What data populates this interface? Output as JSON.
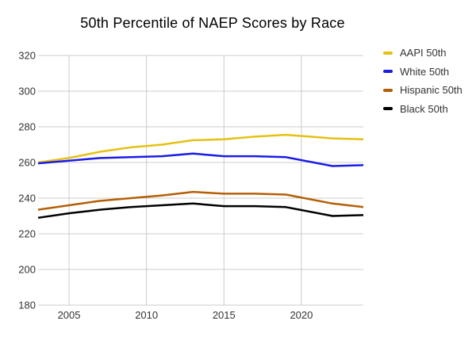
{
  "title": "50th Percentile of NAEP Scores by Race",
  "chart_data": {
    "type": "line",
    "x": [
      2003,
      2005,
      2007,
      2009,
      2011,
      2013,
      2015,
      2017,
      2019,
      2022,
      2024
    ],
    "series": [
      {
        "name": "AAPI 50th",
        "color": "#e5c114",
        "values": [
          260,
          262.5,
          266,
          268.5,
          270,
          272.5,
          273,
          274.5,
          275.5,
          273.5,
          273
        ]
      },
      {
        "name": "White 50th",
        "color": "#1b1be6",
        "values": [
          259.5,
          261,
          262.5,
          263,
          263.5,
          265,
          263.5,
          263.5,
          263,
          258,
          258.5
        ]
      },
      {
        "name": "Hispanic 50th",
        "color": "#b45f06",
        "values": [
          233.5,
          236,
          238.5,
          240,
          241.5,
          243.5,
          242.5,
          242.5,
          242,
          237,
          235
        ]
      },
      {
        "name": "Black 50th",
        "color": "#000000",
        "values": [
          229,
          231.5,
          233.5,
          235,
          236,
          237,
          235.5,
          235.5,
          235,
          230,
          230.5
        ]
      }
    ],
    "xticks": [
      2005,
      2010,
      2015,
      2020
    ],
    "yticks": [
      320,
      300,
      280,
      260,
      240,
      220,
      200,
      180
    ],
    "xlim": [
      2003,
      2024
    ],
    "ylim": [
      180,
      320
    ],
    "grid": true,
    "legend_position": "right",
    "xlabel": "",
    "ylabel": ""
  },
  "style": {
    "grid_color": "#cccccc",
    "axis_text_color": "#333333",
    "title_color": "#000000",
    "background": "#ffffff"
  }
}
